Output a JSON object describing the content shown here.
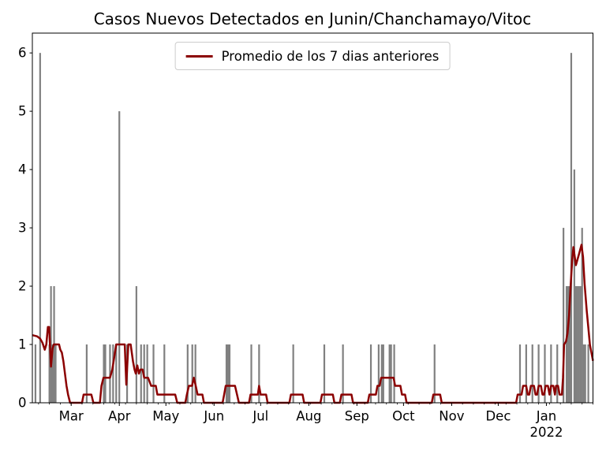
{
  "title": "Casos Nuevos Detectados en Junin/Chanchamayo/Vitoc",
  "legend": {
    "label": "Promedio de los 7 dias anteriores"
  },
  "colors": {
    "bar": "#808080",
    "line": "#8b0000",
    "spine": "#000000",
    "tick": "#000000",
    "text": "#000000",
    "legend_border": "#cccccc",
    "background": "#ffffff"
  },
  "chart_data": {
    "type": "bar",
    "title": "Casos Nuevos Detectados en Junin/Chanchamayo/Vitoc",
    "xlabel": "",
    "ylabel": "",
    "grid": false,
    "legend_position": "upper center",
    "x_axis": {
      "unit": "days since 2021-02-04",
      "total_days": 361,
      "month_ticks": [
        {
          "label": "Mar",
          "day": 25
        },
        {
          "label": "Apr",
          "day": 56
        },
        {
          "label": "May",
          "day": 86
        },
        {
          "label": "Jun",
          "day": 117
        },
        {
          "label": "Jul",
          "day": 147
        },
        {
          "label": "Aug",
          "day": 178
        },
        {
          "label": "Sep",
          "day": 209
        },
        {
          "label": "Oct",
          "day": 239
        },
        {
          "label": "Nov",
          "day": 270
        },
        {
          "label": "Dec",
          "day": 300
        },
        {
          "label": "Jan",
          "day": 331
        }
      ],
      "year_label": {
        "label": "2022",
        "day": 331
      },
      "minor_tick_every_days": 7,
      "minor_tick_start_day": 4
    },
    "y_axis": {
      "ticks": [
        0,
        1,
        2,
        3,
        4,
        5,
        6
      ],
      "ylim": [
        0,
        6.34
      ]
    },
    "bars": [
      [
        2,
        1
      ],
      [
        5,
        6
      ],
      [
        11,
        1
      ],
      [
        12,
        2
      ],
      [
        13,
        1
      ],
      [
        14,
        2
      ],
      [
        15,
        1
      ],
      [
        35,
        1
      ],
      [
        46,
        1
      ],
      [
        47,
        1
      ],
      [
        50,
        1
      ],
      [
        52,
        1
      ],
      [
        54,
        1
      ],
      [
        56,
        5
      ],
      [
        61,
        1
      ],
      [
        67,
        2
      ],
      [
        70,
        1
      ],
      [
        72,
        1
      ],
      [
        74,
        1
      ],
      [
        78,
        1
      ],
      [
        85,
        1
      ],
      [
        100,
        1
      ],
      [
        103,
        1
      ],
      [
        105,
        1
      ],
      [
        125,
        1
      ],
      [
        126,
        1
      ],
      [
        127,
        1
      ],
      [
        141,
        1
      ],
      [
        146,
        1
      ],
      [
        168,
        1
      ],
      [
        188,
        1
      ],
      [
        200,
        1
      ],
      [
        218,
        1
      ],
      [
        223,
        1
      ],
      [
        225,
        1
      ],
      [
        226,
        1
      ],
      [
        230,
        1
      ],
      [
        231,
        1
      ],
      [
        233,
        1
      ],
      [
        259,
        1
      ],
      [
        314,
        1
      ],
      [
        318,
        1
      ],
      [
        322,
        1
      ],
      [
        326,
        1
      ],
      [
        330,
        1
      ],
      [
        334,
        1
      ],
      [
        338,
        1
      ],
      [
        342,
        3
      ],
      [
        344,
        2
      ],
      [
        345,
        2
      ],
      [
        346,
        2
      ],
      [
        347,
        6
      ],
      [
        349,
        4
      ],
      [
        350,
        2
      ],
      [
        351,
        2
      ],
      [
        352,
        2
      ],
      [
        353,
        2
      ],
      [
        354,
        3
      ],
      [
        355,
        1
      ],
      [
        356,
        1
      ],
      [
        358,
        1
      ]
    ],
    "line_series": {
      "name": "Promedio de los 7 dias anteriores",
      "points": [
        [
          0,
          1.16
        ],
        [
          3,
          1.14
        ],
        [
          5,
          1.1
        ],
        [
          6.5,
          1.03
        ],
        [
          8,
          0.91
        ],
        [
          9,
          1.0
        ],
        [
          10,
          1.3
        ],
        [
          10.8,
          1.3
        ],
        [
          12,
          0.62
        ],
        [
          13,
          0.93
        ],
        [
          13.8,
          1.0
        ],
        [
          17.2,
          1.0
        ],
        [
          18,
          0.91
        ],
        [
          19,
          0.86
        ],
        [
          20,
          0.71
        ],
        [
          21,
          0.5
        ],
        [
          22,
          0.29
        ],
        [
          23,
          0.14
        ],
        [
          24.3,
          0
        ],
        [
          32,
          0
        ],
        [
          33,
          0.14
        ],
        [
          38,
          0.14
        ],
        [
          39.3,
          0
        ],
        [
          43.5,
          0
        ],
        [
          44.5,
          0.29
        ],
        [
          45.8,
          0.43
        ],
        [
          50,
          0.43
        ],
        [
          51.5,
          0.57
        ],
        [
          54,
          1.0
        ],
        [
          59.5,
          1.0
        ],
        [
          60.5,
          0.31
        ],
        [
          61.8,
          1.0
        ],
        [
          63.3,
          1.0
        ],
        [
          64.8,
          0.71
        ],
        [
          65.8,
          0.57
        ],
        [
          66.6,
          0.5
        ],
        [
          67.6,
          0.64
        ],
        [
          68.6,
          0.5
        ],
        [
          69.6,
          0.57
        ],
        [
          71,
          0.57
        ],
        [
          72,
          0.43
        ],
        [
          74.5,
          0.43
        ],
        [
          75.5,
          0.36
        ],
        [
          76.5,
          0.29
        ],
        [
          79.5,
          0.29
        ],
        [
          80.5,
          0.14
        ],
        [
          92,
          0.14
        ],
        [
          93.3,
          0
        ],
        [
          98.5,
          0
        ],
        [
          99.5,
          0.14
        ],
        [
          100.8,
          0.29
        ],
        [
          102.8,
          0.29
        ],
        [
          104,
          0.43
        ],
        [
          105.2,
          0.29
        ],
        [
          106.4,
          0.14
        ],
        [
          109.5,
          0.14
        ],
        [
          110.5,
          0
        ],
        [
          122.5,
          0
        ],
        [
          123.5,
          0.14
        ],
        [
          124.5,
          0.29
        ],
        [
          130.5,
          0.29
        ],
        [
          131.8,
          0.14
        ],
        [
          133,
          0
        ],
        [
          139.5,
          0
        ],
        [
          140.5,
          0.14
        ],
        [
          145.2,
          0.14
        ],
        [
          146,
          0.29
        ],
        [
          147,
          0.14
        ],
        [
          150.5,
          0.14
        ],
        [
          151.5,
          0
        ],
        [
          165.5,
          0
        ],
        [
          166.5,
          0.14
        ],
        [
          174,
          0.14
        ],
        [
          175,
          0
        ],
        [
          185.5,
          0
        ],
        [
          186.5,
          0.14
        ],
        [
          193.5,
          0.14
        ],
        [
          194.5,
          0
        ],
        [
          198,
          0
        ],
        [
          199,
          0.14
        ],
        [
          205.5,
          0.14
        ],
        [
          206.5,
          0
        ],
        [
          216,
          0
        ],
        [
          217,
          0.14
        ],
        [
          221.2,
          0.14
        ],
        [
          222.2,
          0.29
        ],
        [
          223.6,
          0.29
        ],
        [
          224.6,
          0.43
        ],
        [
          232.6,
          0.43
        ],
        [
          233.6,
          0.29
        ],
        [
          237,
          0.29
        ],
        [
          238,
          0.14
        ],
        [
          240,
          0.14
        ],
        [
          241,
          0
        ],
        [
          257.2,
          0
        ],
        [
          258.2,
          0.14
        ],
        [
          262.6,
          0.14
        ],
        [
          263.6,
          0
        ],
        [
          311.5,
          0
        ],
        [
          312.5,
          0.14
        ],
        [
          315,
          0.14
        ],
        [
          316,
          0.29
        ],
        [
          318,
          0.29
        ],
        [
          319,
          0.14
        ],
        [
          320,
          0.14
        ],
        [
          321,
          0.29
        ],
        [
          323,
          0.29
        ],
        [
          324,
          0.14
        ],
        [
          325,
          0.14
        ],
        [
          326,
          0.29
        ],
        [
          327.5,
          0.29
        ],
        [
          328.5,
          0.14
        ],
        [
          329.5,
          0.14
        ],
        [
          330.5,
          0.29
        ],
        [
          332,
          0.29
        ],
        [
          333,
          0.14
        ],
        [
          334,
          0.29
        ],
        [
          335.5,
          0.29
        ],
        [
          336.5,
          0.14
        ],
        [
          337.2,
          0.29
        ],
        [
          338.5,
          0.29
        ],
        [
          339.5,
          0.14
        ],
        [
          341,
          0.14
        ],
        [
          341.7,
          0.43
        ],
        [
          342.4,
          1.0
        ],
        [
          343.6,
          1.05
        ],
        [
          344.6,
          1.19
        ],
        [
          345.6,
          1.5
        ],
        [
          346.6,
          2.0
        ],
        [
          347.6,
          2.45
        ],
        [
          348.4,
          2.67
        ],
        [
          350,
          2.36
        ],
        [
          352,
          2.55
        ],
        [
          353.6,
          2.71
        ],
        [
          354.6,
          2.5
        ],
        [
          355.6,
          2.04
        ],
        [
          357,
          1.57
        ],
        [
          358,
          1.29
        ],
        [
          359,
          1.0
        ],
        [
          360,
          0.86
        ],
        [
          361,
          0.72
        ]
      ]
    }
  }
}
